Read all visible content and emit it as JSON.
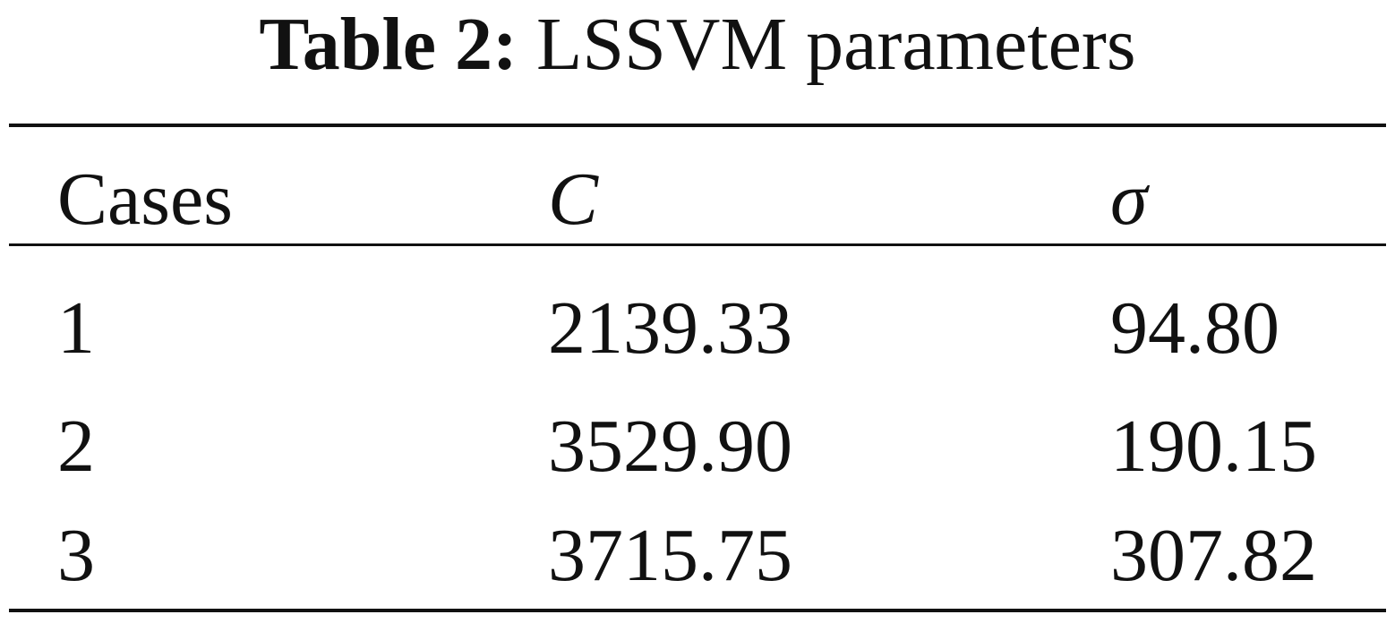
{
  "caption": {
    "label": "Table 2:",
    "text": "LSSVM parameters"
  },
  "table": {
    "headers": [
      "Cases",
      "C",
      "σ"
    ],
    "rows": [
      [
        "1",
        "2139.33",
        "94.80"
      ],
      [
        "2",
        "3529.90",
        "190.15"
      ],
      [
        "3",
        "3715.75",
        "307.82"
      ]
    ]
  }
}
